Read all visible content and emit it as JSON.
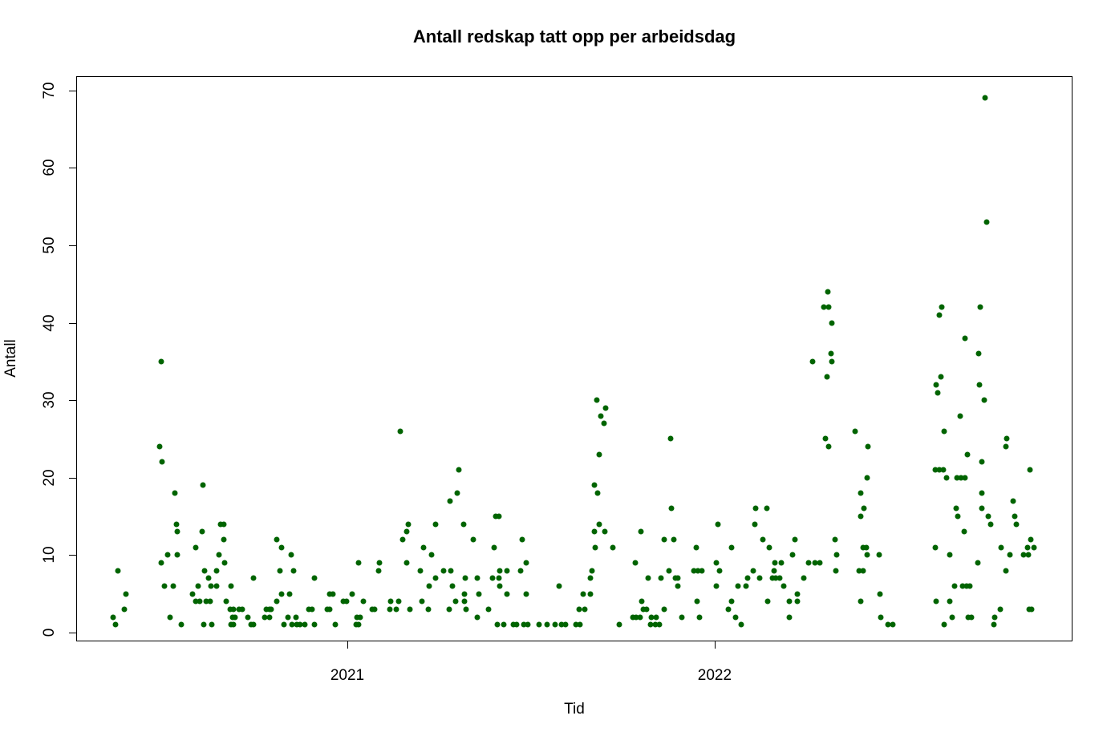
{
  "chart_data": {
    "type": "scatter",
    "title": "Antall redskap tatt opp per arbeidsdag",
    "xlabel": "Tid",
    "ylabel": "Antall",
    "point_color": "#006400",
    "background_color": "#ffffff",
    "frame_color": "#000000",
    "grid": false,
    "legend": "none",
    "xlim": [
      2020.262,
      2022.974
    ],
    "ylim": [
      -1.14,
      71.84
    ],
    "x_ticks": [
      {
        "value": 2021,
        "label": "2021"
      },
      {
        "value": 2022,
        "label": "2022"
      }
    ],
    "y_ticks": [
      {
        "value": 0,
        "label": "0"
      },
      {
        "value": 10,
        "label": "10"
      },
      {
        "value": 20,
        "label": "20"
      },
      {
        "value": 30,
        "label": "30"
      },
      {
        "value": 40,
        "label": "40"
      },
      {
        "value": 50,
        "label": "50"
      },
      {
        "value": 60,
        "label": "60"
      },
      {
        "value": 70,
        "label": "70"
      }
    ],
    "points": [
      [
        2020.362,
        2
      ],
      [
        2020.369,
        1
      ],
      [
        2020.375,
        8
      ],
      [
        2020.393,
        3
      ],
      [
        2020.397,
        5
      ],
      [
        2020.489,
        24
      ],
      [
        2020.493,
        35
      ],
      [
        2020.493,
        9
      ],
      [
        2020.496,
        22
      ],
      [
        2020.502,
        6
      ],
      [
        2020.511,
        10
      ],
      [
        2020.517,
        2
      ],
      [
        2020.526,
        6
      ],
      [
        2020.531,
        18
      ],
      [
        2020.535,
        14
      ],
      [
        2020.537,
        13
      ],
      [
        2020.537,
        10
      ],
      [
        2020.548,
        1
      ],
      [
        2020.579,
        5
      ],
      [
        2020.587,
        11
      ],
      [
        2020.587,
        4
      ],
      [
        2020.594,
        6
      ],
      [
        2020.598,
        4
      ],
      [
        2020.605,
        13
      ],
      [
        2020.607,
        19
      ],
      [
        2020.609,
        1
      ],
      [
        2020.611,
        8
      ],
      [
        2020.616,
        4
      ],
      [
        2020.622,
        7
      ],
      [
        2020.627,
        4
      ],
      [
        2020.629,
        6
      ],
      [
        2020.631,
        1
      ],
      [
        2020.644,
        8
      ],
      [
        2020.644,
        6
      ],
      [
        2020.651,
        10
      ],
      [
        2020.655,
        14
      ],
      [
        2020.664,
        14
      ],
      [
        2020.664,
        12
      ],
      [
        2020.666,
        9
      ],
      [
        2020.67,
        4
      ],
      [
        2020.681,
        3
      ],
      [
        2020.683,
        6
      ],
      [
        2020.683,
        1
      ],
      [
        2020.688,
        2
      ],
      [
        2020.69,
        3
      ],
      [
        2020.69,
        1
      ],
      [
        2020.694,
        2
      ],
      [
        2020.705,
        3
      ],
      [
        2020.714,
        3
      ],
      [
        2020.729,
        2
      ],
      [
        2020.738,
        1
      ],
      [
        2020.745,
        1
      ],
      [
        2020.745,
        7
      ],
      [
        2020.775,
        2
      ],
      [
        2020.779,
        3
      ],
      [
        2020.788,
        3
      ],
      [
        2020.788,
        2
      ],
      [
        2020.793,
        3
      ],
      [
        2020.808,
        12
      ],
      [
        2020.808,
        4
      ],
      [
        2020.817,
        8
      ],
      [
        2020.821,
        11
      ],
      [
        2020.821,
        5
      ],
      [
        2020.828,
        1
      ],
      [
        2020.838,
        2
      ],
      [
        2020.843,
        5
      ],
      [
        2020.847,
        10
      ],
      [
        2020.849,
        1
      ],
      [
        2020.854,
        8
      ],
      [
        2020.86,
        2
      ],
      [
        2020.862,
        1
      ],
      [
        2020.871,
        1
      ],
      [
        2020.884,
        1
      ],
      [
        2020.895,
        3
      ],
      [
        2020.904,
        3
      ],
      [
        2020.911,
        7
      ],
      [
        2020.911,
        1
      ],
      [
        2020.945,
        3
      ],
      [
        2020.952,
        3
      ],
      [
        2020.952,
        5
      ],
      [
        2020.961,
        5
      ],
      [
        2020.967,
        1
      ],
      [
        2020.989,
        4
      ],
      [
        2020.998,
        4
      ],
      [
        2021.013,
        5
      ],
      [
        2021.024,
        1
      ],
      [
        2021.026,
        2
      ],
      [
        2021.031,
        9
      ],
      [
        2021.031,
        1
      ],
      [
        2021.035,
        2
      ],
      [
        2021.044,
        4
      ],
      [
        2021.068,
        3
      ],
      [
        2021.074,
        3
      ],
      [
        2021.085,
        8
      ],
      [
        2021.087,
        9
      ],
      [
        2021.116,
        3
      ],
      [
        2021.118,
        4
      ],
      [
        2021.133,
        3
      ],
      [
        2021.14,
        4
      ],
      [
        2021.144,
        26
      ],
      [
        2021.151,
        12
      ],
      [
        2021.162,
        13
      ],
      [
        2021.162,
        9
      ],
      [
        2021.166,
        14
      ],
      [
        2021.17,
        3
      ],
      [
        2021.199,
        8
      ],
      [
        2021.203,
        4
      ],
      [
        2021.207,
        11
      ],
      [
        2021.221,
        3
      ],
      [
        2021.223,
        6
      ],
      [
        2021.229,
        10
      ],
      [
        2021.24,
        14
      ],
      [
        2021.24,
        7
      ],
      [
        2021.262,
        8
      ],
      [
        2021.277,
        3
      ],
      [
        2021.279,
        17
      ],
      [
        2021.282,
        8
      ],
      [
        2021.286,
        6
      ],
      [
        2021.295,
        4
      ],
      [
        2021.299,
        18
      ],
      [
        2021.303,
        21
      ],
      [
        2021.317,
        14
      ],
      [
        2021.319,
        5
      ],
      [
        2021.319,
        4
      ],
      [
        2021.321,
        7
      ],
      [
        2021.323,
        3
      ],
      [
        2021.343,
        12
      ],
      [
        2021.354,
        7
      ],
      [
        2021.354,
        2
      ],
      [
        2021.358,
        5
      ],
      [
        2021.384,
        3
      ],
      [
        2021.395,
        7
      ],
      [
        2021.4,
        11
      ],
      [
        2021.404,
        15
      ],
      [
        2021.408,
        1
      ],
      [
        2021.413,
        15
      ],
      [
        2021.413,
        7
      ],
      [
        2021.415,
        8
      ],
      [
        2021.415,
        6
      ],
      [
        2021.426,
        1
      ],
      [
        2021.434,
        8
      ],
      [
        2021.434,
        5
      ],
      [
        2021.452,
        1
      ],
      [
        2021.461,
        1
      ],
      [
        2021.472,
        8
      ],
      [
        2021.476,
        12
      ],
      [
        2021.48,
        1
      ],
      [
        2021.487,
        9
      ],
      [
        2021.487,
        5
      ],
      [
        2021.491,
        1
      ],
      [
        2021.522,
        1
      ],
      [
        2021.544,
        1
      ],
      [
        2021.566,
        1
      ],
      [
        2021.576,
        6
      ],
      [
        2021.583,
        1
      ],
      [
        2021.594,
        1
      ],
      [
        2021.622,
        1
      ],
      [
        2021.631,
        3
      ],
      [
        2021.633,
        1
      ],
      [
        2021.642,
        5
      ],
      [
        2021.646,
        3
      ],
      [
        2021.662,
        5
      ],
      [
        2021.662,
        7
      ],
      [
        2021.666,
        8
      ],
      [
        2021.672,
        19
      ],
      [
        2021.672,
        13
      ],
      [
        2021.675,
        11
      ],
      [
        2021.679,
        30
      ],
      [
        2021.681,
        18
      ],
      [
        2021.686,
        23
      ],
      [
        2021.686,
        14
      ],
      [
        2021.69,
        28
      ],
      [
        2021.699,
        27
      ],
      [
        2021.701,
        13
      ],
      [
        2021.703,
        29
      ],
      [
        2021.723,
        11
      ],
      [
        2021.74,
        1
      ],
      [
        2021.777,
        2
      ],
      [
        2021.784,
        9
      ],
      [
        2021.786,
        2
      ],
      [
        2021.797,
        2
      ],
      [
        2021.799,
        13
      ],
      [
        2021.801,
        4
      ],
      [
        2021.806,
        3
      ],
      [
        2021.814,
        3
      ],
      [
        2021.819,
        7
      ],
      [
        2021.825,
        1
      ],
      [
        2021.828,
        2
      ],
      [
        2021.838,
        1
      ],
      [
        2021.841,
        2
      ],
      [
        2021.849,
        1
      ],
      [
        2021.854,
        7
      ],
      [
        2021.862,
        12
      ],
      [
        2021.862,
        3
      ],
      [
        2021.876,
        8
      ],
      [
        2021.88,
        25
      ],
      [
        2021.882,
        16
      ],
      [
        2021.889,
        12
      ],
      [
        2021.893,
        7
      ],
      [
        2021.9,
        7
      ],
      [
        2021.9,
        6
      ],
      [
        2021.911,
        2
      ],
      [
        2021.943,
        8
      ],
      [
        2021.95,
        11
      ],
      [
        2021.952,
        4
      ],
      [
        2021.954,
        8
      ],
      [
        2021.959,
        2
      ],
      [
        2021.965,
        8
      ],
      [
        2022.004,
        9
      ],
      [
        2022.004,
        6
      ],
      [
        2022.009,
        14
      ],
      [
        2022.013,
        8
      ],
      [
        2022.037,
        3
      ],
      [
        2022.046,
        11
      ],
      [
        2022.046,
        4
      ],
      [
        2022.057,
        2
      ],
      [
        2022.063,
        6
      ],
      [
        2022.072,
        1
      ],
      [
        2022.085,
        6
      ],
      [
        2022.09,
        7
      ],
      [
        2022.105,
        8
      ],
      [
        2022.109,
        14
      ],
      [
        2022.111,
        16
      ],
      [
        2022.122,
        7
      ],
      [
        2022.131,
        12
      ],
      [
        2022.142,
        16
      ],
      [
        2022.144,
        4
      ],
      [
        2022.148,
        11
      ],
      [
        2022.157,
        7
      ],
      [
        2022.162,
        8
      ],
      [
        2022.164,
        9
      ],
      [
        2022.166,
        7
      ],
      [
        2022.177,
        7
      ],
      [
        2022.181,
        9
      ],
      [
        2022.188,
        6
      ],
      [
        2022.203,
        4
      ],
      [
        2022.203,
        2
      ],
      [
        2022.212,
        10
      ],
      [
        2022.218,
        12
      ],
      [
        2022.225,
        5
      ],
      [
        2022.225,
        4
      ],
      [
        2022.242,
        7
      ],
      [
        2022.255,
        9
      ],
      [
        2022.266,
        35
      ],
      [
        2022.273,
        9
      ],
      [
        2022.286,
        9
      ],
      [
        2022.297,
        42
      ],
      [
        2022.301,
        25
      ],
      [
        2022.306,
        33
      ],
      [
        2022.308,
        44
      ],
      [
        2022.31,
        42
      ],
      [
        2022.31,
        24
      ],
      [
        2022.317,
        36
      ],
      [
        2022.319,
        40
      ],
      [
        2022.319,
        35
      ],
      [
        2022.327,
        12
      ],
      [
        2022.33,
        8
      ],
      [
        2022.332,
        10
      ],
      [
        2022.382,
        26
      ],
      [
        2022.393,
        8
      ],
      [
        2022.397,
        18
      ],
      [
        2022.397,
        15
      ],
      [
        2022.397,
        4
      ],
      [
        2022.404,
        11
      ],
      [
        2022.404,
        8
      ],
      [
        2022.406,
        16
      ],
      [
        2022.413,
        11
      ],
      [
        2022.415,
        20
      ],
      [
        2022.415,
        10
      ],
      [
        2022.417,
        24
      ],
      [
        2022.448,
        10
      ],
      [
        2022.45,
        5
      ],
      [
        2022.452,
        2
      ],
      [
        2022.472,
        1
      ],
      [
        2022.485,
        1
      ],
      [
        2022.6,
        21
      ],
      [
        2022.6,
        11
      ],
      [
        2022.603,
        32
      ],
      [
        2022.603,
        4
      ],
      [
        2022.607,
        31
      ],
      [
        2022.611,
        41
      ],
      [
        2022.611,
        21
      ],
      [
        2022.616,
        33
      ],
      [
        2022.618,
        42
      ],
      [
        2022.622,
        21
      ],
      [
        2022.625,
        26
      ],
      [
        2022.625,
        1
      ],
      [
        2022.631,
        20
      ],
      [
        2022.64,
        10
      ],
      [
        2022.64,
        4
      ],
      [
        2022.646,
        2
      ],
      [
        2022.653,
        6
      ],
      [
        2022.657,
        16
      ],
      [
        2022.659,
        20
      ],
      [
        2022.662,
        15
      ],
      [
        2022.668,
        28
      ],
      [
        2022.67,
        20
      ],
      [
        2022.675,
        6
      ],
      [
        2022.679,
        13
      ],
      [
        2022.681,
        38
      ],
      [
        2022.681,
        20
      ],
      [
        2022.686,
        6
      ],
      [
        2022.688,
        23
      ],
      [
        2022.69,
        2
      ],
      [
        2022.694,
        6
      ],
      [
        2022.699,
        2
      ],
      [
        2022.716,
        9
      ],
      [
        2022.718,
        36
      ],
      [
        2022.721,
        32
      ],
      [
        2022.723,
        42
      ],
      [
        2022.727,
        22
      ],
      [
        2022.727,
        18
      ],
      [
        2022.727,
        16
      ],
      [
        2022.734,
        30
      ],
      [
        2022.736,
        69
      ],
      [
        2022.74,
        53
      ],
      [
        2022.745,
        15
      ],
      [
        2022.751,
        14
      ],
      [
        2022.76,
        1
      ],
      [
        2022.762,
        2
      ],
      [
        2022.777,
        3
      ],
      [
        2022.78,
        11
      ],
      [
        2022.793,
        24
      ],
      [
        2022.793,
        8
      ],
      [
        2022.795,
        25
      ],
      [
        2022.804,
        10
      ],
      [
        2022.812,
        17
      ],
      [
        2022.817,
        15
      ],
      [
        2022.821,
        14
      ],
      [
        2022.841,
        10
      ],
      [
        2022.852,
        11
      ],
      [
        2022.854,
        10
      ],
      [
        2022.856,
        3
      ],
      [
        2022.858,
        21
      ],
      [
        2022.86,
        12
      ],
      [
        2022.862,
        3
      ],
      [
        2022.869,
        11
      ]
    ]
  }
}
